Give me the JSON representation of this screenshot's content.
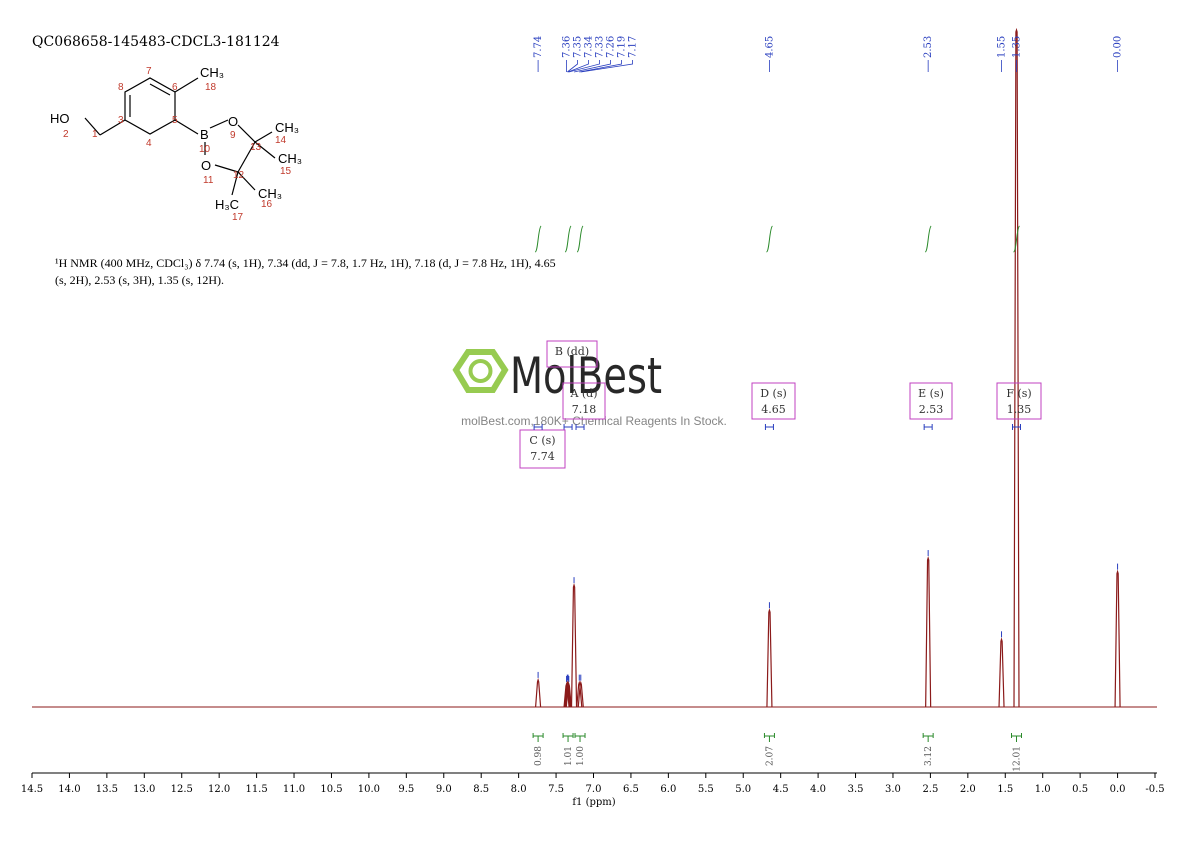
{
  "header": {
    "title": "QC068658-145483-CDCL3-181124"
  },
  "structure": {
    "labels": [
      "HO",
      "2",
      "1",
      "3",
      "4",
      "8",
      "7",
      "6",
      "5",
      "CH₃",
      "18",
      "B",
      "10",
      "O",
      "9",
      "O",
      "11",
      "13",
      "CH₃",
      "14",
      "CH₃",
      "15",
      "12",
      "CH₃",
      "16",
      "H₃C",
      "17"
    ]
  },
  "description": [
    "¹H NMR (400 MHz, CDCl₃) δ 7.74 (s, 1H), 7.34 (dd, J = 7.8, 1.7 Hz, 1H), 7.18 (d, J = 7.8 Hz, 1H), 4.65",
    "(s, 2H), 2.53 (s, 3H), 1.35 (s, 12H)."
  ],
  "watermark": {
    "brand": "MolBest",
    "tagline": "molBest.com,180K+ Chemical Reagents In Stock."
  },
  "chart_data": {
    "type": "nmr",
    "xlabel": "f1 (ppm)",
    "xlim": [
      14.5,
      -0.5
    ],
    "ylim": [
      0,
      100
    ],
    "xticks": [
      14.5,
      {
        "value": 14,
        "label": "14.0"
      },
      13.5,
      {
        "value": 13,
        "label": "13.0"
      },
      12.5,
      {
        "value": 12,
        "label": "12.0"
      },
      11.5,
      {
        "value": 11,
        "label": "11.0"
      },
      10.5,
      {
        "value": 10,
        "label": "10.0"
      },
      9.5,
      {
        "value": 9,
        "label": "9.0"
      },
      8.5,
      {
        "value": 8,
        "label": "8.0"
      },
      7.5,
      {
        "value": 7,
        "label": "7.0"
      },
      6.5,
      {
        "value": 6,
        "label": "6.0"
      },
      5.5,
      {
        "value": 5,
        "label": "5.0"
      },
      4.5,
      {
        "value": 4,
        "label": "4.0"
      },
      3.5,
      {
        "value": 3,
        "label": "3.0"
      },
      2.5,
      {
        "value": 2,
        "label": "2.0"
      },
      1.5,
      {
        "value": 1,
        "label": "1.0"
      },
      0.5,
      {
        "value": 0,
        "label": "0.0"
      },
      -0.5
    ],
    "color": "#8b1a1a",
    "peaks": {
      "x": [
        7.74,
        7.36,
        7.35,
        7.34,
        7.33,
        7.26,
        7.19,
        7.17,
        4.65,
        2.53,
        1.55,
        1.35,
        0.0
      ],
      "values": [
        4,
        3.4,
        3.6,
        3.6,
        3.4,
        18,
        3.6,
        3.6,
        14.3,
        22,
        10,
        100,
        20
      ]
    },
    "peak_labels": [
      "7.74",
      "7.36",
      "7.35",
      "7.34",
      "7.33",
      "7.26",
      "7.19",
      "7.17",
      "4.65",
      "2.53",
      "1.55",
      "1.35",
      "0.00"
    ],
    "multiplets": [
      {
        "name": "B (dd)"
      },
      {
        "name": "A (d)",
        "shift": "7.18"
      },
      {
        "name": "C (s)",
        "shift": "7.74"
      },
      {
        "name": "D (s)",
        "shift": "4.65"
      },
      {
        "name": "E (s)",
        "shift": "2.53"
      },
      {
        "name": "F (s)",
        "shift": "1.35"
      }
    ],
    "integrals": [
      {
        "label": "0.98",
        "center": 7.74
      },
      {
        "label": "1.01",
        "center": 7.34
      },
      {
        "label": "1.00",
        "center": 7.18
      },
      {
        "label": "2.07",
        "center": 4.65
      },
      {
        "label": "3.12",
        "center": 2.53
      },
      {
        "label": "12.01",
        "center": 1.35
      }
    ]
  }
}
